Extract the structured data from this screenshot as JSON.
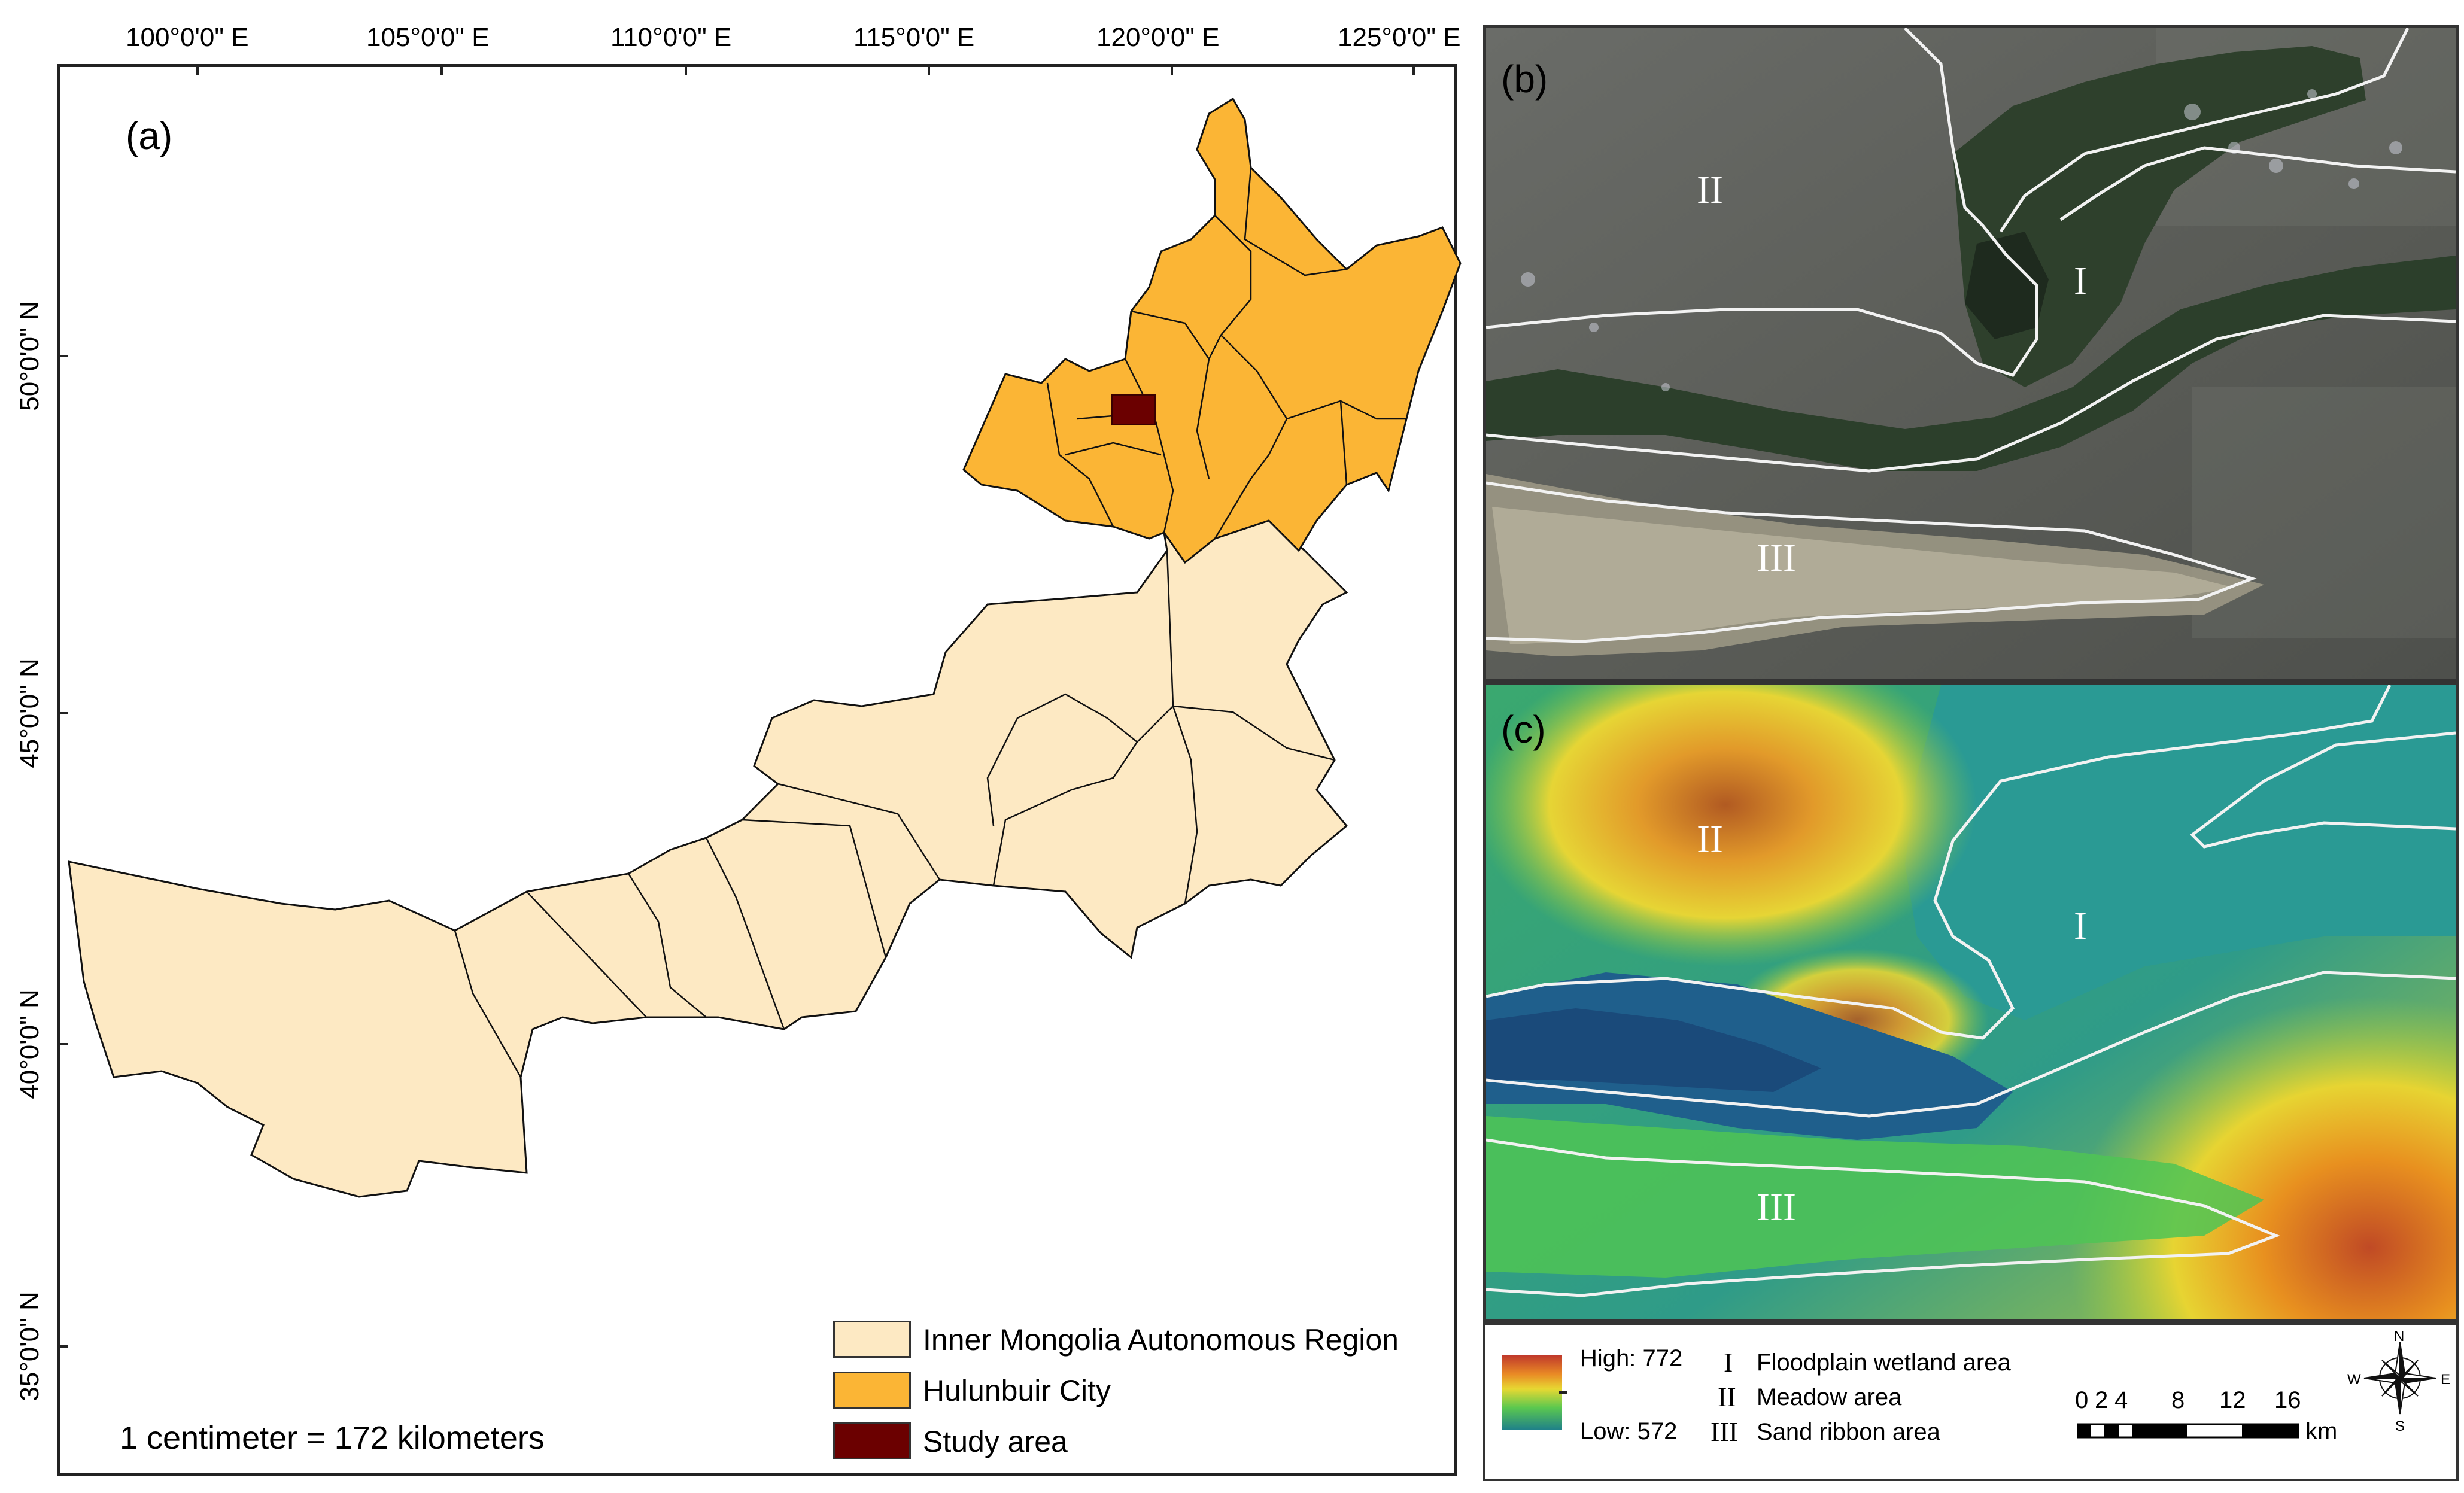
{
  "panel_a": {
    "label": "(a)",
    "x_ticks": [
      "100°0'0\" E",
      "105°0'0\" E",
      "110°0'0\" E",
      "115°0'0\" E",
      "120°0'0\" E",
      "125°0'0\" E"
    ],
    "y_ticks": [
      "50°0'0\" N",
      "45°0'0\" N",
      "40°0'0\" N",
      "35°0'0\" N"
    ],
    "scale_text": "1 centimeter = 172 kilometers",
    "legend": [
      {
        "label": "Inner Mongolia Autonomous Region",
        "color": "#fde9c3"
      },
      {
        "label": "Hulunbuir City",
        "color": "#fbb535"
      },
      {
        "label": "Study area",
        "color": "#6b0000"
      }
    ]
  },
  "panel_b": {
    "label": "(b)",
    "zones": [
      "II",
      "I",
      "III"
    ]
  },
  "panel_c": {
    "label": "(c)",
    "zones": [
      "II",
      "I",
      "III"
    ]
  },
  "bottom_legend": {
    "dem_high": "High: 772",
    "dem_low": "Low: 572",
    "zone_items": [
      {
        "numeral": "I",
        "label": "Floodplain wetland area"
      },
      {
        "numeral": "II",
        "label": "Meadow area"
      },
      {
        "numeral": "III",
        "label": "Sand ribbon area"
      }
    ],
    "scale_ticks": [
      "0",
      "2",
      "4",
      "8",
      "12",
      "16"
    ],
    "scale_unit": "km",
    "compass": {
      "n": "N",
      "s": "S",
      "e": "E",
      "w": "W"
    }
  }
}
